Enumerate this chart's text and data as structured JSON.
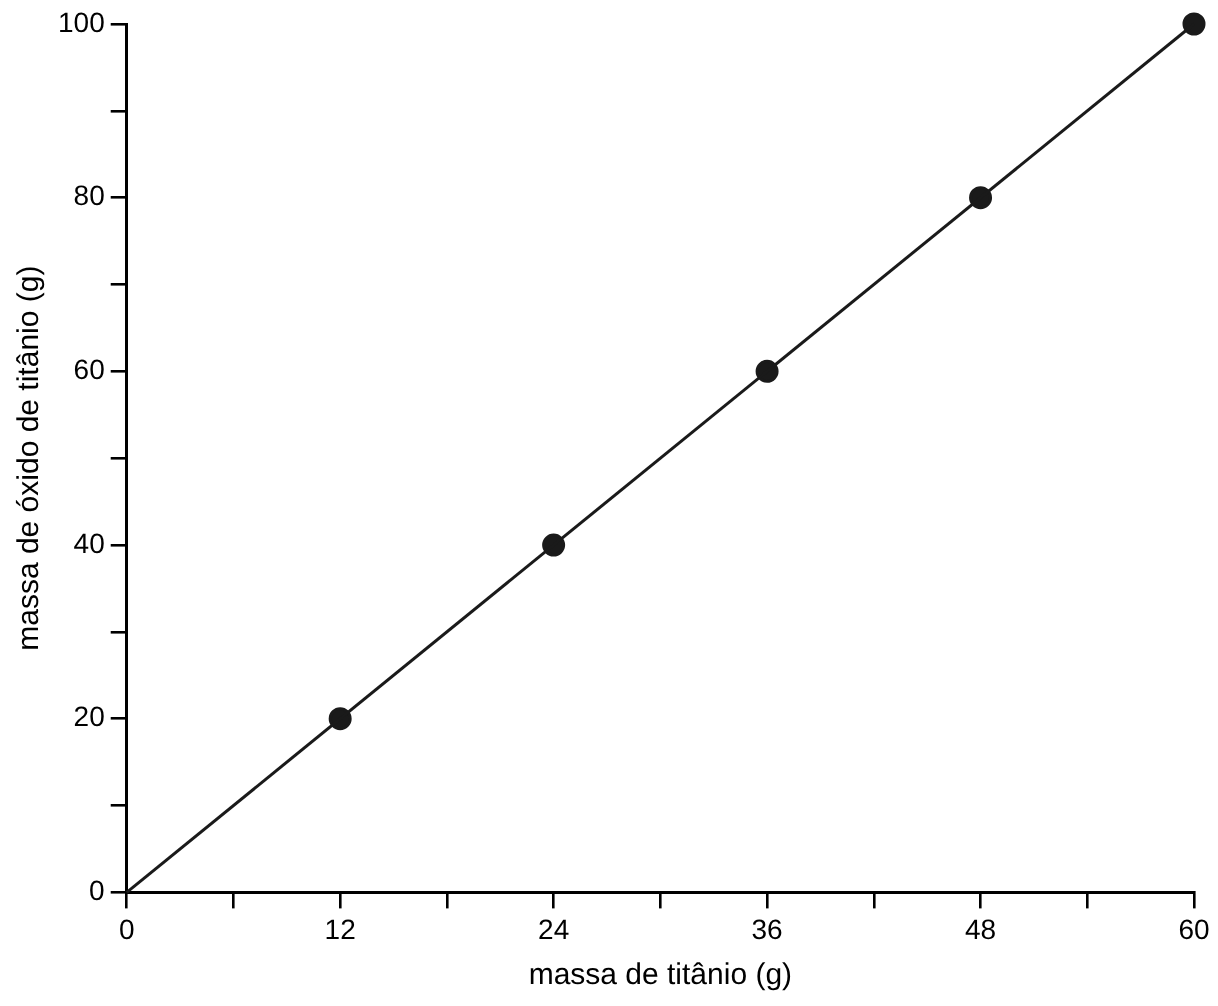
{
  "chart_data": {
    "type": "line",
    "xlabel": "massa de titânio (g)",
    "ylabel": "massa de óxido de titânio (g)",
    "xlim": [
      0,
      60
    ],
    "ylim": [
      0,
      100
    ],
    "xticks": [
      0,
      {
        "value": 6,
        "label": null
      },
      12,
      {
        "value": 18,
        "label": null
      },
      24,
      {
        "value": 30,
        "label": null
      },
      36,
      {
        "value": 42,
        "label": null
      },
      48,
      {
        "value": 54,
        "label": null
      },
      60
    ],
    "yticks": [
      0,
      {
        "value": 10,
        "label": null
      },
      20,
      {
        "value": 30,
        "label": null
      },
      40,
      {
        "value": 50,
        "label": null
      },
      60,
      {
        "value": 70,
        "label": null
      },
      80,
      {
        "value": 90,
        "label": null
      },
      100
    ],
    "series": [
      {
        "type": "line",
        "color": "#1a1a1a",
        "marker": "none",
        "line_style": "solid",
        "x": [
          0,
          60
        ],
        "values": [
          0,
          100
        ]
      },
      {
        "type": "scatter",
        "color": "#1a1a1a",
        "marker": "circle",
        "x": [
          12,
          24,
          36,
          48,
          60
        ],
        "values": [
          20,
          40,
          60,
          80,
          100
        ]
      }
    ]
  }
}
